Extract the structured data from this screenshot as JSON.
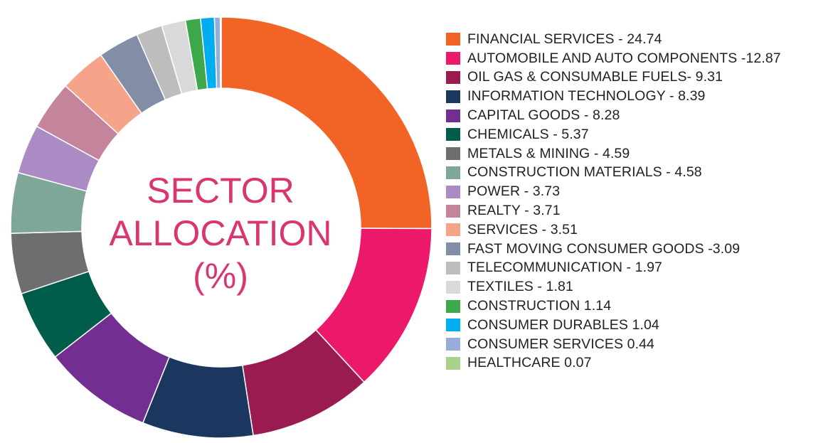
{
  "center": {
    "line1": "SECTOR",
    "line2": "ALLOCATION",
    "line3": "(%)"
  },
  "chart_data": {
    "type": "pie",
    "variant": "donut",
    "title": "SECTOR ALLOCATION (%)",
    "legend_position": "right",
    "slices": [
      {
        "label": "FINANCIAL SERVICES - 24.74",
        "value": 24.74,
        "color": "#f26326"
      },
      {
        "label": "AUTOMOBILE AND AUTO COMPONENTS -12.87",
        "value": 12.87,
        "color": "#ec1869"
      },
      {
        "label": "OIL GAS & CONSUMABLE FUELS- 9.31",
        "value": 9.31,
        "color": "#9a1b4f"
      },
      {
        "label": "INFORMATION TECHNOLOGY - 8.39",
        "value": 8.39,
        "color": "#1b365f"
      },
      {
        "label": "CAPITAL GOODS - 8.28",
        "value": 8.28,
        "color": "#722e91"
      },
      {
        "label": "CHEMICALS - 5.37",
        "value": 5.37,
        "color": "#005c4b"
      },
      {
        "label": "METALS & MINING - 4.59",
        "value": 4.59,
        "color": "#6d6e70"
      },
      {
        "label": "CONSTRUCTION MATERIALS - 4.58",
        "value": 4.58,
        "color": "#7ea699"
      },
      {
        "label": "POWER - 3.73",
        "value": 3.73,
        "color": "#ab8bc4"
      },
      {
        "label": "REALTY - 3.71",
        "value": 3.71,
        "color": "#c4849b"
      },
      {
        "label": "SERVICES - 3.51",
        "value": 3.51,
        "color": "#f6a489"
      },
      {
        "label": "FAST MOVING CONSUMER GOODS -3.09",
        "value": 3.09,
        "color": "#818ea6"
      },
      {
        "label": "TELECOMMUNICATION - 1.97",
        "value": 1.97,
        "color": "#bdbdbd"
      },
      {
        "label": "TEXTILES - 1.81",
        "value": 1.81,
        "color": "#d9d9d9"
      },
      {
        "label": "CONSTRUCTION  1.14",
        "value": 1.14,
        "color": "#3ca84a"
      },
      {
        "label": "CONSUMER DURABLES  1.04",
        "value": 1.04,
        "color": "#00adef"
      },
      {
        "label": "CONSUMER SERVICES  0.44",
        "value": 0.44,
        "color": "#96acdb"
      },
      {
        "label": "HEALTHCARE  0.07",
        "value": 0.07,
        "color": "#a9d18e"
      }
    ]
  }
}
